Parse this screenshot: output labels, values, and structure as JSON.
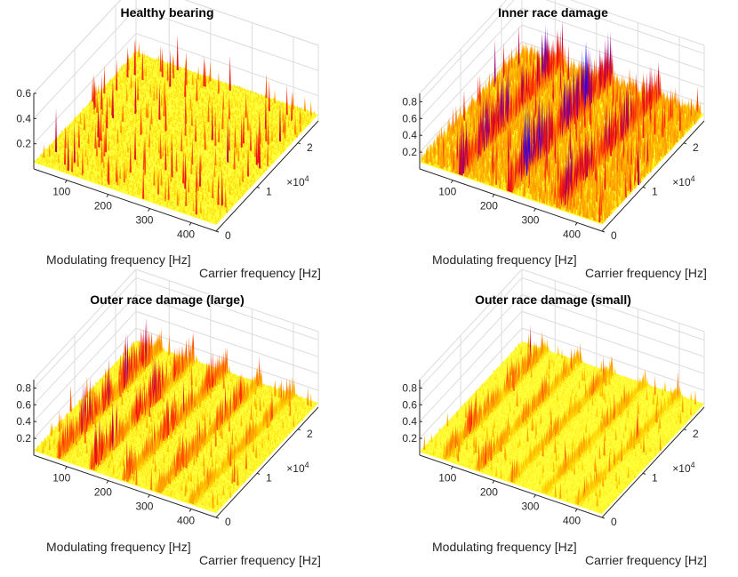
{
  "figure": {
    "colormap": [
      "#0b00ff",
      "#6a00a8",
      "#c4003b",
      "#ff2200",
      "#ff8000",
      "#ffd200",
      "#ffff3a"
    ],
    "accent_cyan": "#27e0ff",
    "background": "#ffffff",
    "grid_color": "#dcdcdc"
  },
  "chart_data": [
    {
      "type": "surface",
      "title": "Healthy bearing",
      "xlabel": "Modulating frequency [Hz]",
      "ylabel": "Carrier frequency [Hz]",
      "x_ticks": [
        "100",
        "200",
        "300",
        "400"
      ],
      "y_ticks": [
        "0",
        "1",
        "2"
      ],
      "y_exponent": "4",
      "z_ticks": [
        "0.2",
        "0.4",
        "0.6"
      ],
      "xlim": [
        20,
        460
      ],
      "ylim": [
        0,
        25000
      ],
      "zlim": [
        0,
        0.6
      ],
      "ridges": [],
      "baseline_level": 0.05,
      "noise_level": 0.03,
      "spike_peak": 0.35,
      "grid": true
    },
    {
      "type": "surface",
      "title": "Inner race damage",
      "xlabel": "Modulating frequency [Hz]",
      "ylabel": "Carrier frequency [Hz]",
      "x_ticks": [
        "100",
        "200",
        "300",
        "400"
      ],
      "y_ticks": [
        "0",
        "1",
        "2"
      ],
      "y_exponent": "4",
      "z_ticks": [
        "0.2",
        "0.4",
        "0.6",
        "0.8"
      ],
      "xlim": [
        20,
        460
      ],
      "ylim": [
        0,
        25000
      ],
      "zlim": [
        0,
        0.9
      ],
      "ridges": [
        {
          "x": 118,
          "peak": 0.75
        },
        {
          "x": 236,
          "peak": 0.9
        },
        {
          "x": 354,
          "peak": 0.65
        }
      ],
      "baseline_level": 0.08,
      "noise_level": 0.18,
      "spike_peak": 0.45,
      "grid": true
    },
    {
      "type": "surface",
      "title": "Outer race damage (large)",
      "xlabel": "Modulating frequency [Hz]",
      "ylabel": "Carrier frequency [Hz]",
      "x_ticks": [
        "100",
        "200",
        "300",
        "400"
      ],
      "y_ticks": [
        "0",
        "1",
        "2"
      ],
      "y_exponent": "4",
      "z_ticks": [
        "0.2",
        "0.4",
        "0.6",
        "0.8"
      ],
      "xlim": [
        20,
        460
      ],
      "ylim": [
        0,
        25000
      ],
      "zlim": [
        0,
        0.9
      ],
      "ridges": [
        {
          "x": 80,
          "peak": 0.7
        },
        {
          "x": 160,
          "peak": 0.6
        },
        {
          "x": 240,
          "peak": 0.5
        },
        {
          "x": 320,
          "peak": 0.45
        },
        {
          "x": 400,
          "peak": 0.3
        }
      ],
      "baseline_level": 0.05,
      "noise_level": 0.04,
      "spike_peak": 0.3,
      "grid": true
    },
    {
      "type": "surface",
      "title": "Outer race damage (small)",
      "xlabel": "Modulating frequency [Hz]",
      "ylabel": "Carrier frequency [Hz]",
      "x_ticks": [
        "100",
        "200",
        "300",
        "400"
      ],
      "y_ticks": [
        "0",
        "1",
        "2"
      ],
      "y_exponent": "4",
      "z_ticks": [
        "0.2",
        "0.4",
        "0.6",
        "0.8"
      ],
      "xlim": [
        20,
        460
      ],
      "ylim": [
        0,
        25000
      ],
      "zlim": [
        0,
        0.9
      ],
      "ridges": [
        {
          "x": 80,
          "peak": 0.45
        },
        {
          "x": 160,
          "peak": 0.35
        },
        {
          "x": 240,
          "peak": 0.3
        },
        {
          "x": 320,
          "peak": 0.28
        },
        {
          "x": 400,
          "peak": 0.22
        }
      ],
      "baseline_level": 0.04,
      "noise_level": 0.03,
      "spike_peak": 0.25,
      "grid": true
    }
  ]
}
